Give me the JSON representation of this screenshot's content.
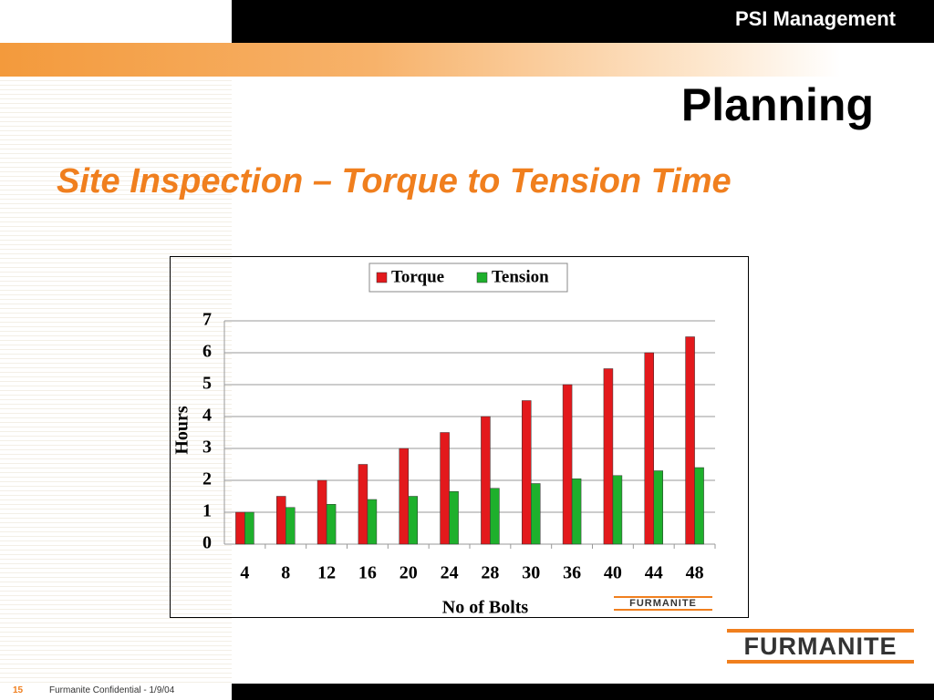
{
  "header": {
    "brand": "PSI Management",
    "title": "Planning",
    "subtitle": "Site Inspection – Torque to Tension Time"
  },
  "footer": {
    "page": "15",
    "note": "Furmanite Confidential - 1/9/04",
    "logo": "FURMANITE"
  },
  "chart_data": {
    "type": "bar",
    "logo": "FURMANITE",
    "x_label": "No of Bolts",
    "y_label": "Hours",
    "categories": [
      "4",
      "8",
      "12",
      "16",
      "20",
      "24",
      "28",
      "30",
      "36",
      "40",
      "44",
      "48"
    ],
    "series": [
      {
        "name": "Torque",
        "color": "#e3191c",
        "values": [
          1,
          1.5,
          2,
          2.5,
          3,
          3.5,
          4,
          4.5,
          5,
          5.5,
          6,
          6.5
        ]
      },
      {
        "name": "Tension",
        "color": "#1eb02c",
        "values": [
          1,
          1.15,
          1.25,
          1.4,
          1.5,
          1.65,
          1.75,
          1.9,
          2.05,
          2.15,
          2.3,
          2.4
        ]
      }
    ],
    "ylim": [
      0,
      7
    ],
    "yticks": [
      0,
      1,
      2,
      3,
      4,
      5,
      6,
      7
    ],
    "grid": true,
    "legend": "top"
  }
}
